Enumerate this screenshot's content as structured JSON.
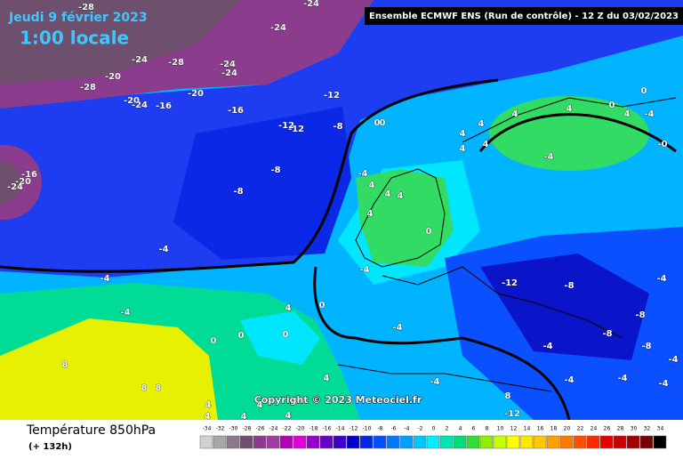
{
  "header": {
    "date": "Jeudi 9 février 2023",
    "time": "1:00 locale",
    "run": "Ensemble ECMWF ENS  (Run de contrôle)  -  12 Z du 03/02/2023",
    "copyright": "Copyright © 2023 Meteociel.fr"
  },
  "map": {
    "isotherm_labels": [
      "-28",
      "-24",
      "-24",
      "-24",
      "-28",
      "-24",
      "-24",
      "-20",
      "-28",
      "-20",
      "-20",
      "-24",
      "-16",
      "-12",
      "-16",
      "-12",
      "-12",
      "-8",
      "0",
      "-16",
      "-20",
      "-24",
      "-8",
      "-8",
      "-4",
      "4",
      "4",
      "4",
      "4",
      "0",
      "-4",
      "-4",
      "-4",
      "0",
      "4",
      "-4",
      "0",
      "0",
      "0",
      "8",
      "8",
      "8",
      "4",
      "-4",
      "4",
      "4",
      "4",
      "4",
      "4",
      "-4",
      "8",
      "-12",
      "-12",
      "-8",
      "-8",
      "-8",
      "-8",
      "-4",
      "-4",
      "-4",
      "-4",
      "-4",
      "-4",
      "4",
      "4",
      "0",
      "0",
      "4",
      "-4",
      "4",
      "4",
      "4",
      "-4",
      "4",
      "-0",
      "0"
    ]
  },
  "legend": {
    "title": "Température 850hPa",
    "lead_time": "(+ 132h)",
    "scale": {
      "values": [
        -34,
        -32,
        -30,
        -28,
        -26,
        -24,
        -22,
        -20,
        -18,
        -16,
        -14,
        -12,
        -10,
        -8,
        -6,
        -4,
        -2,
        0,
        2,
        4,
        6,
        8,
        10,
        12,
        14,
        16,
        18,
        20,
        22,
        24,
        26,
        28,
        30,
        32,
        34
      ],
      "colors": [
        "#d2d2d2",
        "#a8a8a8",
        "#8c788c",
        "#6e506e",
        "#8c3c8c",
        "#a03ca0",
        "#b400b4",
        "#dc00dc",
        "#9600c8",
        "#6400c8",
        "#3c00c8",
        "#0000c8",
        "#0028e6",
        "#0050ff",
        "#0078ff",
        "#00a0ff",
        "#00c8ff",
        "#00f0ff",
        "#00e6b4",
        "#00dc78",
        "#32dc32",
        "#8cf000",
        "#c8ff00",
        "#ffff00",
        "#ffe600",
        "#ffc800",
        "#ffa000",
        "#ff7800",
        "#ff5000",
        "#ff2800",
        "#e60000",
        "#c80000",
        "#a00000",
        "#780000",
        "#000000"
      ]
    }
  }
}
